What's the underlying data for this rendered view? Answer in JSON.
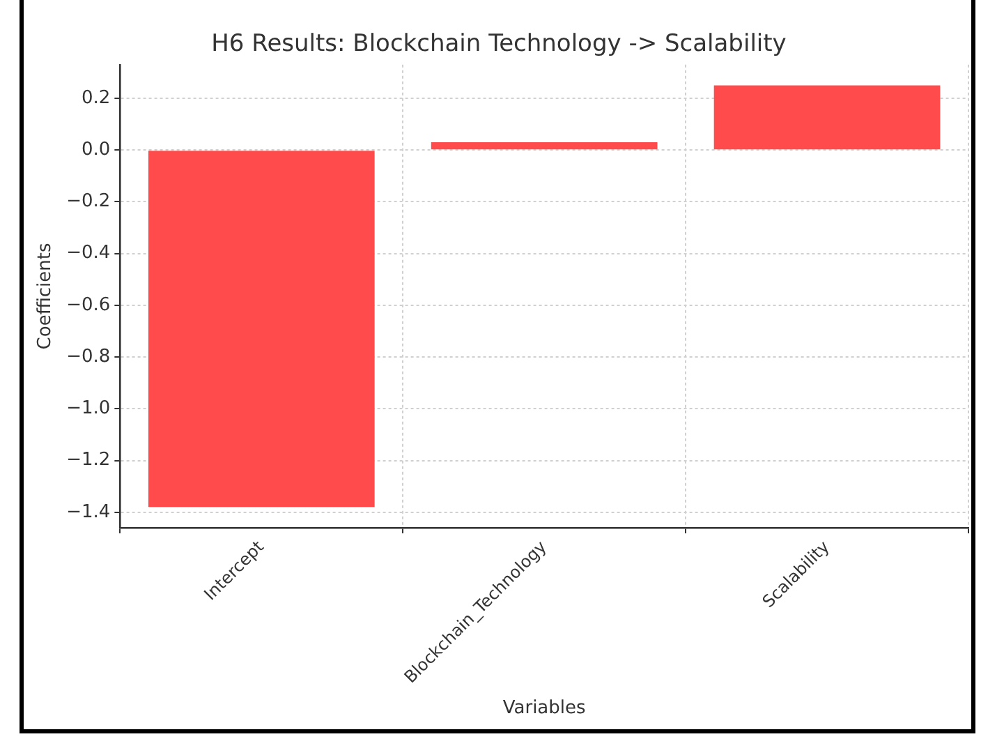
{
  "chart_data": {
    "type": "bar",
    "title": "H6 Results: Blockchain Technology -> Scalability",
    "xlabel": "Variables",
    "ylabel": "Coefficients",
    "categories": [
      "Intercept",
      "Blockchain_Technology",
      "Scalability"
    ],
    "values": [
      -1.38,
      0.03,
      0.25
    ],
    "color": "#ff4b4b",
    "ylim": [
      -1.46,
      0.33
    ],
    "yticks": [
      -1.4,
      -1.2,
      {
        "value": -1,
        "label": "−1.0"
      },
      -0.8,
      -0.6,
      -0.4,
      -0.2,
      {
        "value": 0,
        "label": "0.0"
      },
      0.2
    ],
    "grid": true
  }
}
